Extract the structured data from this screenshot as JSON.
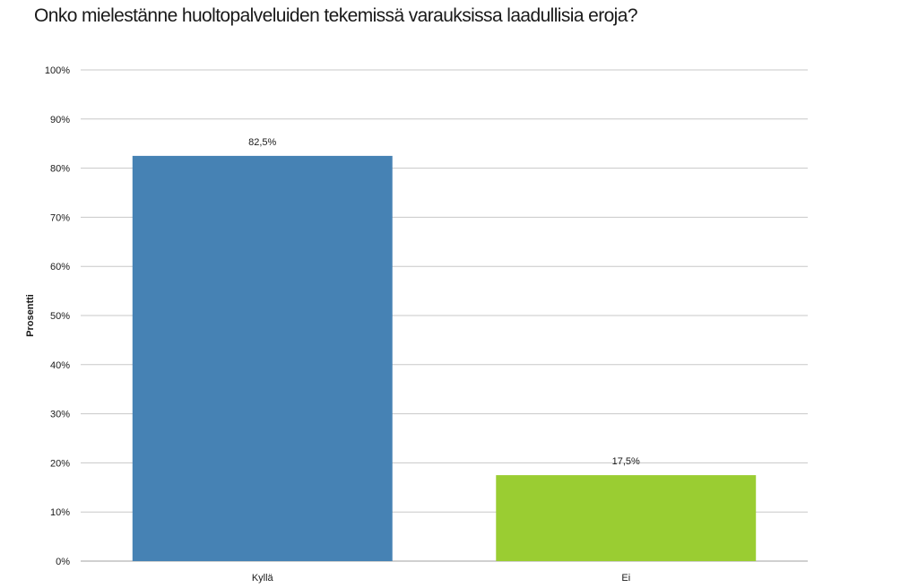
{
  "chart_data": {
    "type": "bar",
    "title": "Onko mielestänne huoltopalveluiden tekemissä varauksissa laadullisia eroja?",
    "ylabel": "Prosentti",
    "xlabel": "",
    "categories": [
      "Kyllä",
      "Ei"
    ],
    "values": [
      82.5,
      17.5
    ],
    "data_labels": [
      "82,5%",
      "17,5%"
    ],
    "bar_colors": [
      "#4682b4",
      "#9acd32"
    ],
    "ylim": [
      0,
      100
    ],
    "yticks": [
      0,
      10,
      20,
      30,
      40,
      50,
      60,
      70,
      80,
      90,
      100
    ],
    "ytick_labels": [
      "0%",
      "10%",
      "20%",
      "30%",
      "40%",
      "50%",
      "60%",
      "70%",
      "80%",
      "90%",
      "100%"
    ],
    "grid": true,
    "grid_color": "#c8c8c8",
    "legend": "none"
  }
}
